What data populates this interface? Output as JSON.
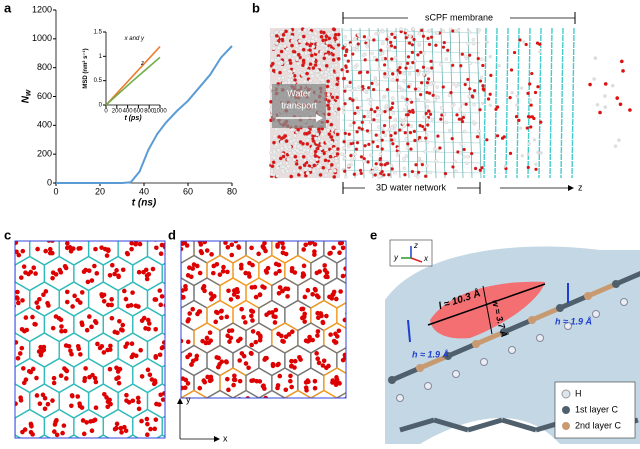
{
  "panel_labels": [
    "a",
    "b",
    "c",
    "d",
    "e"
  ],
  "chart_data": [
    {
      "type": "line",
      "x_label": "t (ns)",
      "y_label": {
        "main": "N",
        "sub": "w"
      },
      "xlim": [
        0,
        80
      ],
      "xticks": [
        0,
        20,
        40,
        60,
        80
      ],
      "ylim": [
        0,
        1200
      ],
      "yticks": [
        0,
        200,
        400,
        600,
        800,
        1000,
        1200
      ],
      "series": [
        {
          "name": null,
          "color": "#5b9bd5",
          "x": [
            0,
            10,
            20,
            30,
            34,
            38,
            42,
            46,
            50,
            55,
            60,
            65,
            70,
            75,
            80
          ],
          "values": [
            0,
            0,
            0,
            0,
            5,
            80,
            230,
            340,
            420,
            500,
            570,
            660,
            750,
            870,
            950
          ]
        }
      ]
    },
    {
      "type": "line",
      "x_label": "t (ps)",
      "y_label": "MSD (nm² s⁻¹)",
      "xlim": [
        0,
        1000
      ],
      "xticks": [
        0,
        200,
        400,
        600,
        800,
        1000
      ],
      "ylim": [
        0,
        1.5
      ],
      "yticks": [
        0,
        0.5,
        1,
        1.5
      ],
      "series": [
        {
          "name": "x and y",
          "color": "#ed7d31",
          "x": [
            0,
            250,
            500,
            750,
            1000
          ],
          "values": [
            0,
            0.3,
            0.6,
            0.9,
            1.2
          ]
        },
        {
          "name": "z",
          "color": "#70ad47",
          "x": [
            0,
            250,
            500,
            750,
            1000
          ],
          "values": [
            0,
            0.25,
            0.5,
            0.74,
            0.98
          ]
        }
      ]
    }
  ],
  "panel_b": {
    "membrane": "sCPF membrane",
    "transport": [
      "Water",
      "transport"
    ],
    "network": "3D water network",
    "axis": "z"
  },
  "panel_d": {
    "axis_y": "y",
    "axis_x": "x"
  },
  "panel_e": {
    "length": "l ≈ 10.3 Å",
    "width": "w ≈ 3.7 Å",
    "height_right": "h ≈ 1.9 Å",
    "height_left": "h ≈ 1.9 Å",
    "axes": [
      "z",
      "y",
      "x"
    ],
    "legend": [
      "H",
      "1st layer C",
      "2nd layer C"
    ]
  }
}
